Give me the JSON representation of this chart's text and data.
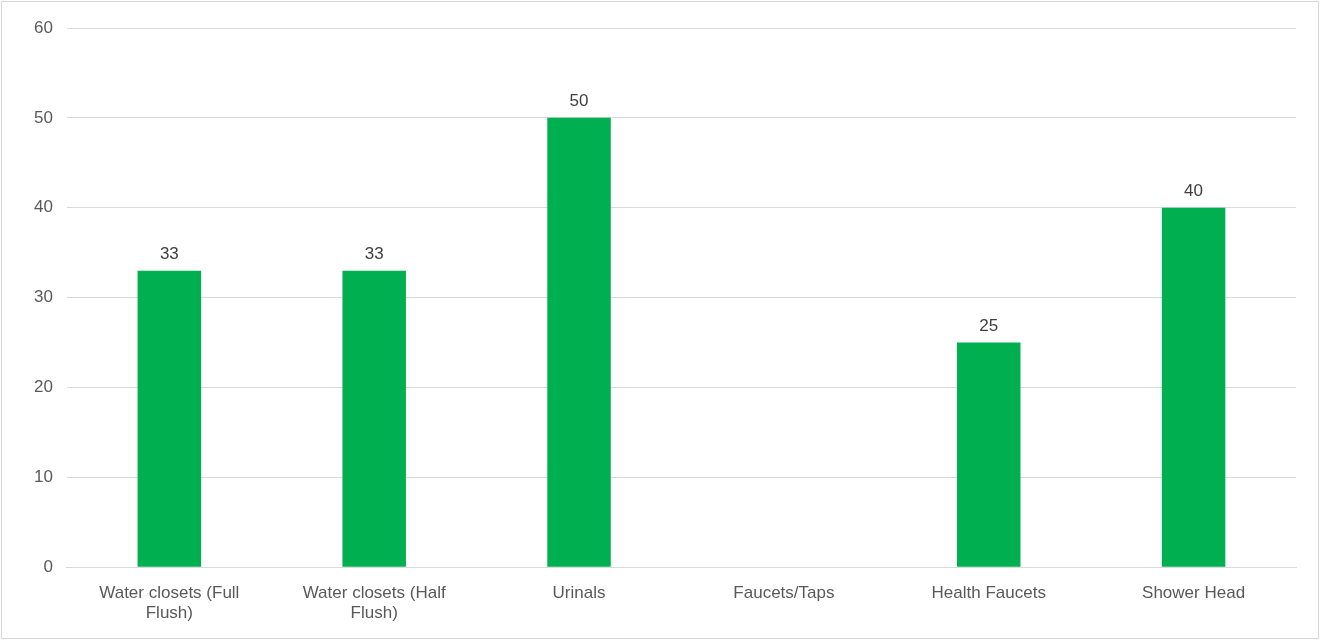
{
  "chart_data": {
    "type": "bar",
    "categories": [
      "Water closets (Full Flush)",
      "Water closets (Half Flush)",
      "Urinals",
      "Faucets/Taps",
      "Health Faucets",
      "Shower Head"
    ],
    "values": [
      33,
      33,
      50,
      null,
      25,
      40
    ],
    "color": "#00b050",
    "ylim": [
      0,
      60
    ],
    "yticks": [
      0,
      10,
      20,
      30,
      40,
      50,
      60
    ],
    "grid": "y",
    "data_labels": true
  }
}
